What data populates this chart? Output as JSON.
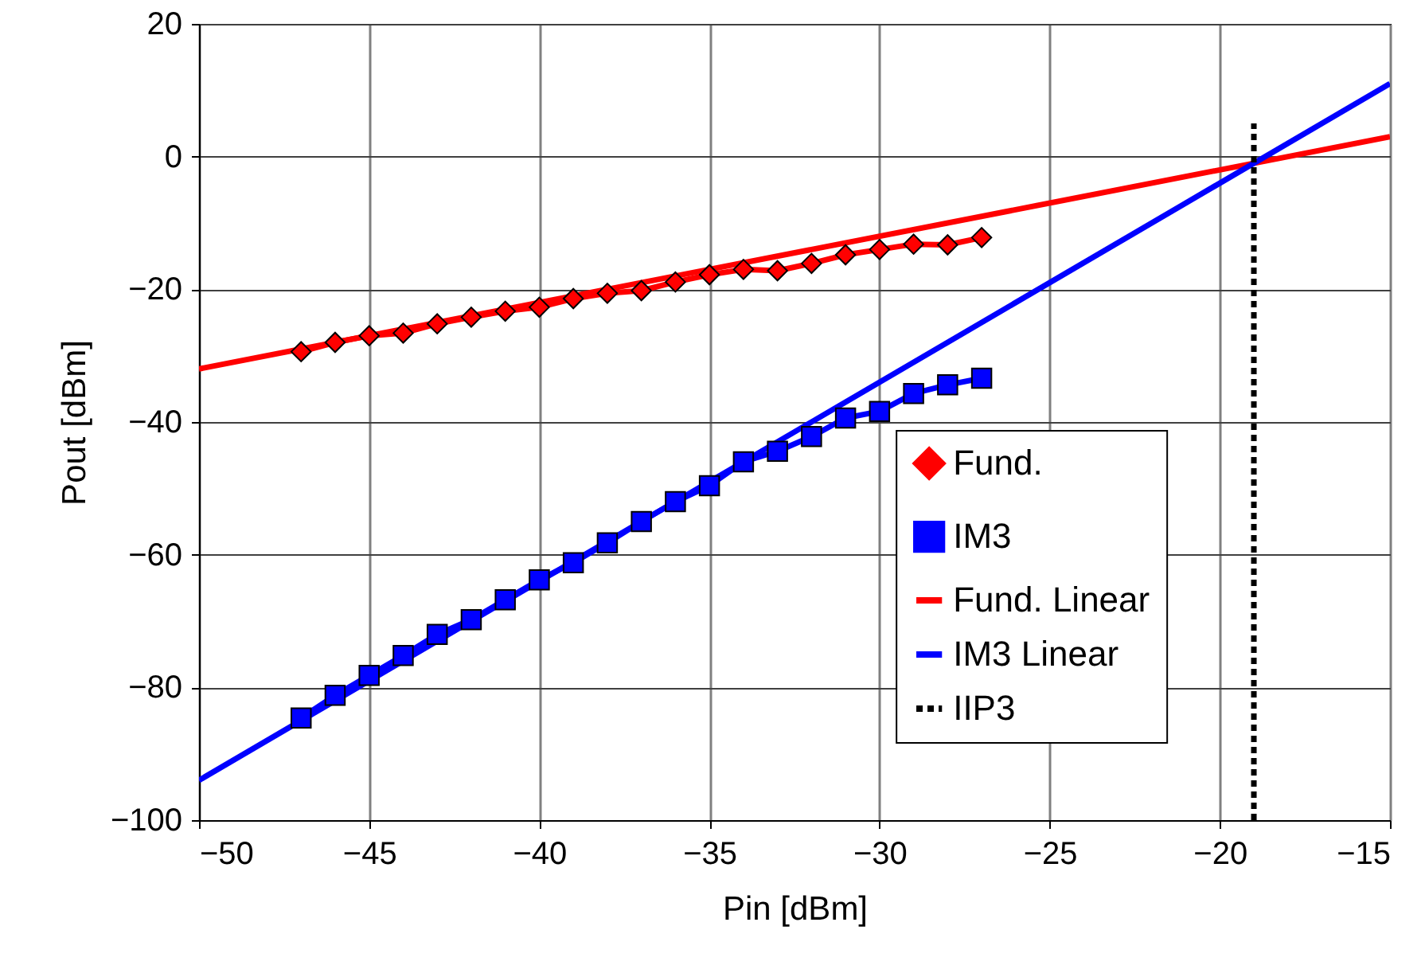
{
  "chart_data": {
    "type": "line",
    "xlabel": "Pin [dBm]",
    "ylabel": "Pout [dBm]",
    "xlim": [
      -50,
      -15
    ],
    "xticks": [
      -50,
      -45,
      -40,
      -35,
      -30,
      -25,
      -20,
      -15
    ],
    "ylim": [
      -100,
      20
    ],
    "yticks": [
      -100,
      -80,
      -60,
      -40,
      -20,
      0,
      20
    ],
    "grid": true,
    "legend": "bottom right",
    "series": [
      {
        "name": "Fund.",
        "color": "#ff0000",
        "marker": "diamond",
        "x": [
          -47,
          -46,
          -45,
          -44,
          -43,
          -42,
          -41,
          -40,
          -39,
          -38,
          -37,
          -36,
          -35,
          -34,
          -33,
          -32,
          -31,
          -30,
          -29,
          -28,
          -27
        ],
        "values": [
          -29.4,
          -28,
          -27,
          -26.6,
          -25.2,
          -24.2,
          -23.3,
          -22.7,
          -21.4,
          -20.6,
          -20.2,
          -18.9,
          -17.8,
          -17,
          -17.2,
          -16.1,
          -14.8,
          -14,
          -13.2,
          -13.3,
          -12.2
        ]
      },
      {
        "name": "IM3",
        "color": "#0000ff",
        "marker": "square",
        "x": [
          -47,
          -46,
          -45,
          -44,
          -43,
          -42,
          -41,
          -40,
          -39,
          -38,
          -37,
          -36,
          -35,
          -34,
          -33,
          -32,
          -31,
          -30,
          -29,
          -28,
          -27
        ],
        "values": [
          -84.6,
          -81.2,
          -78.2,
          -75.2,
          -72,
          -69.8,
          -66.8,
          -63.8,
          -61.2,
          -58.2,
          -55,
          -52,
          -49.6,
          -46,
          -44.4,
          -42.2,
          -39.4,
          -38.4,
          -35.7,
          -34.4,
          -33.4
        ]
      },
      {
        "name": "Fund. Linear",
        "color": "#ff0000",
        "marker": "none",
        "x": [
          -50,
          -15
        ],
        "values": [
          -32,
          3
        ]
      },
      {
        "name": "IM3 Linear",
        "color": "#0000ff",
        "marker": "none",
        "x": [
          -50,
          -15
        ],
        "values": [
          -94,
          11
        ]
      },
      {
        "name": "IIP3",
        "color": "#000000",
        "marker": "none",
        "line_style": "dotted",
        "x": [
          -19,
          -19
        ],
        "values": [
          -100,
          5
        ]
      }
    ]
  }
}
